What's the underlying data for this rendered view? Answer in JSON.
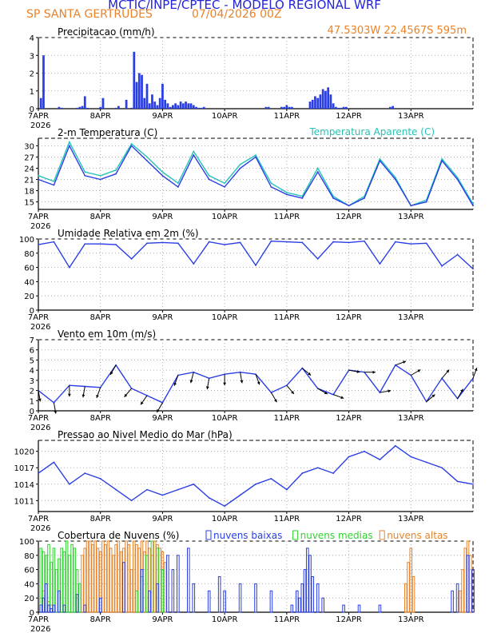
{
  "header": {
    "title": "MCTIC/INPE/CPTEC - MODELO REGIONAL WRF",
    "station": "SP SANTA GERTRUDES",
    "run": "07/04/2026 00Z"
  },
  "colors": {
    "blue": "#2a3ee6",
    "orange": "#e8832a",
    "cyan": "#25c2b6",
    "green": "#2ed62e",
    "black": "#000000",
    "grid": "#9a9a9a"
  },
  "time_axis": {
    "ticks": [
      {
        "x": 0,
        "label": "7APR"
      },
      {
        "x": 24,
        "label": "8APR"
      },
      {
        "x": 48,
        "label": "9APR"
      },
      {
        "x": 72,
        "label": "10APR"
      },
      {
        "x": 96,
        "label": "11APR"
      },
      {
        "x": 120,
        "label": "12APR"
      },
      {
        "x": 144,
        "label": "13APR"
      }
    ],
    "year": "2026",
    "range": [
      0,
      168
    ]
  },
  "chart_data": [
    {
      "id": "precip",
      "type": "bar",
      "title": "Precipitacao (mm/h)",
      "location": "47.5303W 22.4567S 595m",
      "ylim": [
        0,
        4
      ],
      "yticks": [
        0,
        1,
        2,
        3,
        4
      ],
      "series": [
        {
          "name": "",
          "x": [
            1,
            2,
            8,
            9,
            15,
            16,
            17,
            18,
            19,
            24,
            25,
            30,
            31,
            34,
            36,
            37,
            38,
            39,
            40,
            41,
            42,
            43,
            44,
            45,
            46,
            47,
            48,
            49,
            50,
            51,
            52,
            53,
            54,
            55,
            56,
            57,
            58,
            59,
            60,
            61,
            62,
            63,
            64,
            88,
            89,
            94,
            95,
            96,
            97,
            98,
            105,
            106,
            107,
            108,
            109,
            110,
            111,
            112,
            113,
            114,
            115,
            116,
            117,
            118,
            119,
            136,
            137
          ],
          "values": [
            0.6,
            3.0,
            0.1,
            0.05,
            0.05,
            0.1,
            0.15,
            0.7,
            0.05,
            0.1,
            0.6,
            0.05,
            0.15,
            0.5,
            0.05,
            3.2,
            1.5,
            2.0,
            1.9,
            0.6,
            1.4,
            0.3,
            0.8,
            0.4,
            0.2,
            0.6,
            1.4,
            0.5,
            0.3,
            0.1,
            0.2,
            0.3,
            0.2,
            0.4,
            0.3,
            0.4,
            0.3,
            0.3,
            0.2,
            0.1,
            0.05,
            0.05,
            0.1,
            0.1,
            0.1,
            0.1,
            0.1,
            0.2,
            0.1,
            0.1,
            0.4,
            0.5,
            0.7,
            0.6,
            0.8,
            1.1,
            1.0,
            1.2,
            0.8,
            0.3,
            0.1,
            0.05,
            0.05,
            0.1,
            0.1,
            0.1,
            0.15
          ]
        }
      ]
    },
    {
      "id": "temp",
      "type": "line",
      "title": "2-m Temperatura (C)",
      "ylim": [
        13,
        32
      ],
      "yticks": [
        15,
        18,
        21,
        24,
        27,
        30
      ],
      "series": [
        {
          "name": "",
          "x": [
            0,
            6,
            12,
            18,
            24,
            30,
            36,
            42,
            48,
            54,
            60,
            66,
            72,
            78,
            84,
            90,
            96,
            102,
            108,
            114,
            120,
            126,
            132,
            138,
            144,
            150,
            156,
            162,
            168
          ],
          "values": [
            21,
            19.5,
            30,
            22,
            21,
            22.5,
            30,
            26,
            22,
            19,
            27.5,
            21,
            19,
            24,
            27,
            19,
            17,
            16,
            23,
            16,
            14,
            16,
            26,
            21,
            14,
            15,
            26,
            21,
            14
          ]
        },
        {
          "name": "Temperatura Aparente (C)",
          "x": [
            0,
            6,
            12,
            18,
            24,
            30,
            36,
            42,
            48,
            54,
            60,
            66,
            72,
            78,
            84,
            90,
            96,
            102,
            108,
            114,
            120,
            126,
            132,
            138,
            144,
            150,
            156,
            162,
            168
          ],
          "values": [
            22,
            20.5,
            31,
            23,
            22,
            23.5,
            30.5,
            27,
            23,
            20,
            28.5,
            22,
            20,
            25,
            27.5,
            20,
            17.5,
            16.5,
            24,
            16.5,
            14,
            16.5,
            26.5,
            21.5,
            14,
            15.5,
            26.5,
            21.5,
            14.5
          ]
        }
      ]
    },
    {
      "id": "rh",
      "type": "line",
      "title": "Umidade Relativa em 2m (%)",
      "ylim": [
        0,
        100
      ],
      "yticks": [
        0,
        20,
        40,
        60,
        80,
        100
      ],
      "series": [
        {
          "name": "",
          "x": [
            0,
            6,
            12,
            18,
            24,
            30,
            36,
            42,
            48,
            54,
            60,
            66,
            72,
            78,
            84,
            90,
            96,
            102,
            108,
            114,
            120,
            126,
            132,
            138,
            144,
            150,
            156,
            162,
            168
          ],
          "values": [
            92,
            96,
            60,
            93,
            93,
            92,
            72,
            94,
            95,
            94,
            65,
            96,
            92,
            95,
            63,
            97,
            96,
            95,
            72,
            96,
            95,
            97,
            65,
            96,
            93,
            94,
            62,
            78,
            58
          ]
        }
      ]
    },
    {
      "id": "wind",
      "type": "line",
      "title": "Vento em 10m (m/s)",
      "ylim": [
        0,
        7
      ],
      "yticks": [
        0,
        1,
        2,
        3,
        4,
        5,
        6,
        7
      ],
      "series": [
        {
          "name": "",
          "x": [
            0,
            6,
            12,
            18,
            24,
            30,
            36,
            42,
            48,
            54,
            60,
            66,
            72,
            78,
            84,
            90,
            96,
            102,
            108,
            114,
            120,
            126,
            132,
            138,
            144,
            150,
            156,
            162,
            168
          ],
          "values": [
            2,
            0.8,
            2.5,
            2.4,
            2.3,
            4.5,
            2.2,
            1.5,
            0.8,
            3.5,
            3.8,
            3.2,
            3.6,
            3.8,
            3.6,
            1.8,
            2.5,
            4.2,
            2.2,
            1.6,
            4.0,
            3.8,
            1.8,
            4.5,
            3.5,
            0.9,
            3.2,
            1.2,
            3.2
          ]
        }
      ],
      "arrow_dirs": [
        170,
        170,
        180,
        190,
        200,
        210,
        220,
        215,
        210,
        200,
        195,
        190,
        180,
        170,
        160,
        150,
        140,
        130,
        120,
        110,
        100,
        90,
        80,
        70,
        60,
        50,
        40,
        30,
        20
      ]
    },
    {
      "id": "pressure",
      "type": "line",
      "title": "Pressao ao Nivel Medio do Mar (hPa)",
      "ylim": [
        1009,
        1022
      ],
      "yticks": [
        1011,
        1014,
        1017,
        1020
      ],
      "series": [
        {
          "name": "",
          "x": [
            0,
            6,
            12,
            18,
            24,
            30,
            36,
            42,
            48,
            54,
            60,
            66,
            72,
            78,
            84,
            90,
            96,
            102,
            108,
            114,
            120,
            126,
            132,
            138,
            144,
            150,
            156,
            162,
            168
          ],
          "values": [
            1016,
            1018,
            1014,
            1016,
            1015,
            1013,
            1011,
            1013,
            1012,
            1013,
            1014,
            1011.5,
            1010,
            1012,
            1014,
            1015,
            1013,
            1016,
            1017,
            1016,
            1019,
            1020,
            1018.5,
            1021,
            1019,
            1018,
            1017,
            1014.5,
            1014
          ]
        }
      ]
    },
    {
      "id": "clouds",
      "type": "bar",
      "title": "Cobertura de Nuvens (%)",
      "ylim": [
        0,
        100
      ],
      "yticks": [
        0,
        20,
        40,
        60,
        80,
        100
      ],
      "series": [
        {
          "name": "nuvens baixas",
          "x": [
            1,
            2,
            3,
            4,
            5,
            6,
            8,
            10,
            15,
            18,
            24,
            33,
            40,
            43,
            46,
            50,
            52,
            54,
            58,
            60,
            66,
            70,
            72,
            78,
            84,
            90,
            98,
            100,
            101,
            102,
            103,
            104,
            105,
            106,
            108,
            110,
            118,
            124,
            132,
            160,
            162,
            166,
            168
          ],
          "values": [
            10,
            20,
            40,
            10,
            5,
            10,
            30,
            10,
            25,
            10,
            20,
            70,
            60,
            30,
            40,
            80,
            60,
            80,
            90,
            40,
            30,
            50,
            30,
            40,
            40,
            30,
            10,
            30,
            20,
            40,
            60,
            90,
            80,
            50,
            40,
            20,
            10,
            10,
            10,
            30,
            40,
            80,
            60
          ]
        },
        {
          "name": "nuvens medias",
          "x": [
            1,
            2,
            3,
            4,
            5,
            6,
            7,
            8,
            9,
            10,
            11,
            12,
            13,
            14,
            15,
            16,
            38,
            40,
            42,
            44,
            46,
            48
          ],
          "values": [
            90,
            85,
            80,
            95,
            70,
            90,
            60,
            75,
            90,
            85,
            100,
            80,
            95,
            90,
            60,
            40,
            30,
            50,
            80,
            100,
            90,
            60
          ]
        },
        {
          "name": "nuvens altas",
          "x": [
            1,
            2,
            3,
            4,
            5,
            17,
            18,
            19,
            20,
            21,
            22,
            23,
            24,
            25,
            26,
            27,
            28,
            29,
            30,
            31,
            32,
            33,
            34,
            35,
            36,
            37,
            38,
            39,
            40,
            41,
            42,
            43,
            44,
            45,
            46,
            47,
            48,
            49,
            142,
            143,
            144,
            145,
            163,
            164,
            165,
            166,
            167,
            168
          ],
          "values": [
            20,
            30,
            40,
            15,
            10,
            80,
            90,
            100,
            100,
            95,
            100,
            90,
            85,
            100,
            95,
            100,
            90,
            80,
            95,
            100,
            85,
            90,
            100,
            95,
            60,
            100,
            95,
            90,
            100,
            85,
            100,
            90,
            80,
            100,
            95,
            90,
            85,
            70,
            40,
            70,
            90,
            50,
            30,
            60,
            90,
            100,
            80,
            60
          ]
        }
      ]
    }
  ]
}
